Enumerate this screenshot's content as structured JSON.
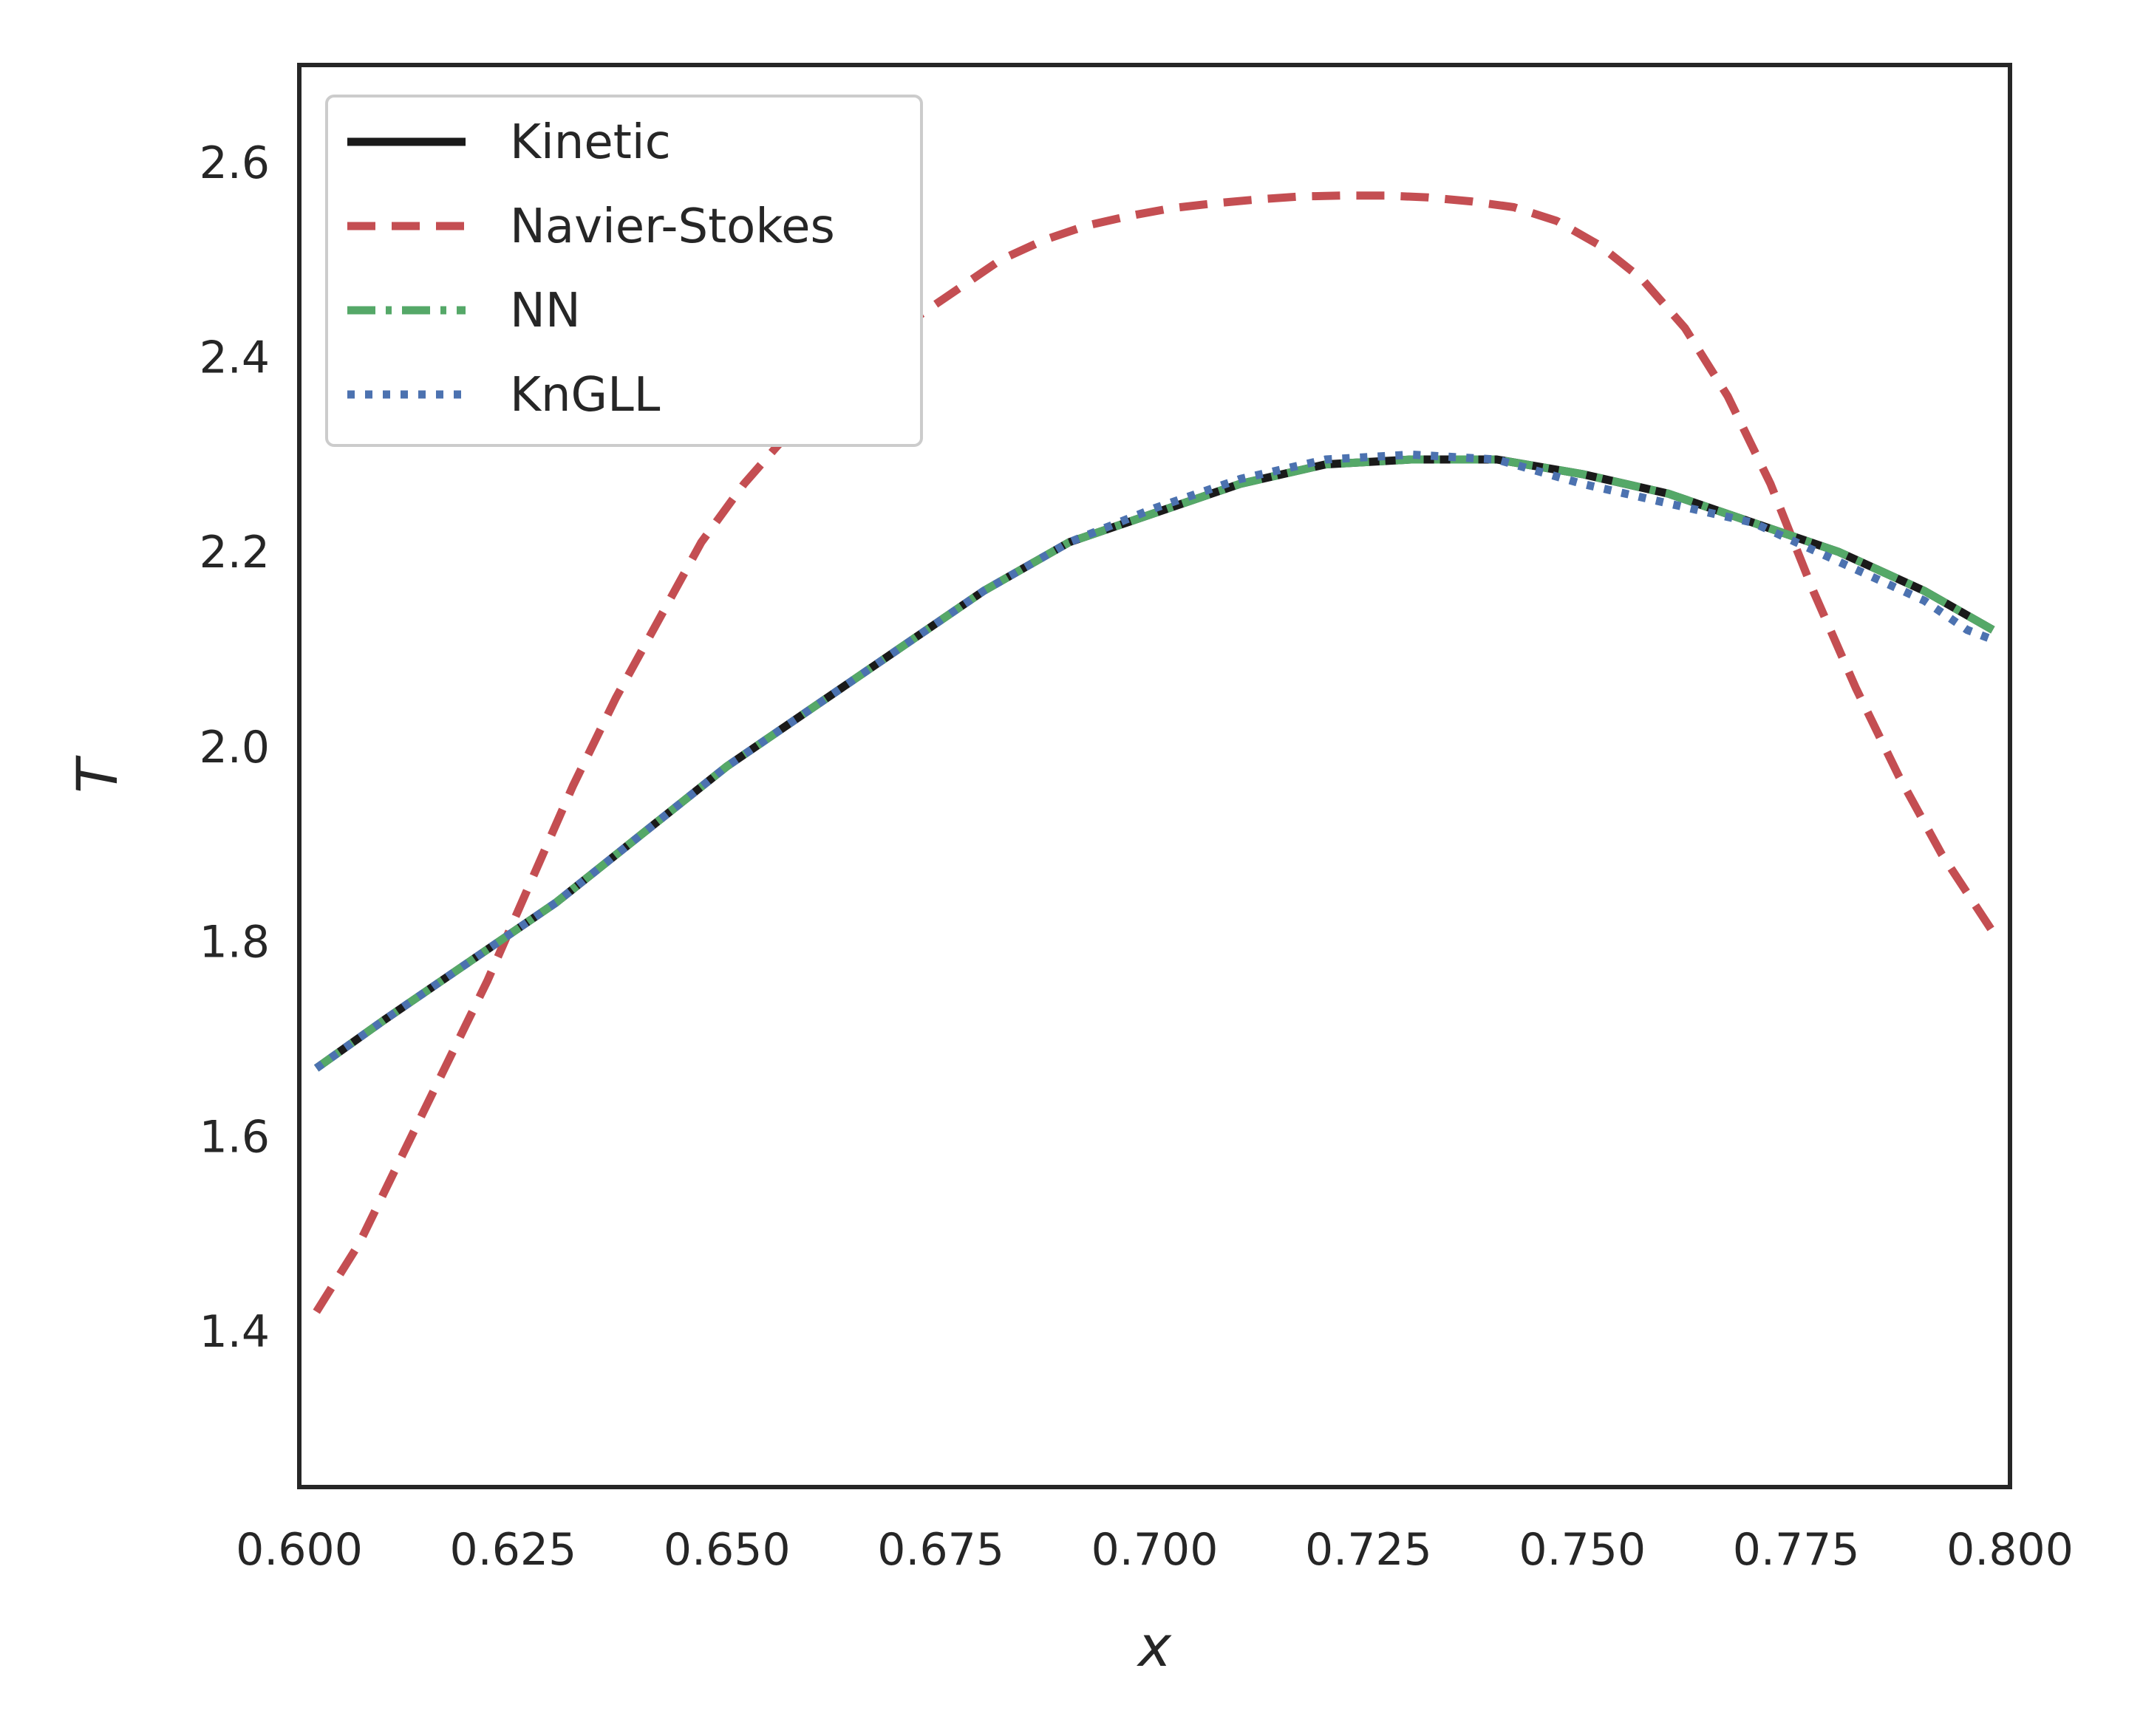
{
  "chart_data": {
    "type": "line",
    "xlabel": "x",
    "ylabel": "T",
    "xlim": [
      0.6,
      0.8
    ],
    "ylim": [
      1.24,
      2.7
    ],
    "xticks": [
      "0.600",
      "0.625",
      "0.650",
      "0.675",
      "0.700",
      "0.725",
      "0.750",
      "0.775",
      "0.800"
    ],
    "yticks": [
      "1.4",
      "1.6",
      "1.8",
      "2.0",
      "2.2",
      "2.4",
      "2.6"
    ],
    "grid": false,
    "legend_position": "top-left",
    "series": [
      {
        "name": "Kinetic",
        "color": "#1a1a1a",
        "style": "solid",
        "x": [
          0.602,
          0.61,
          0.62,
          0.63,
          0.64,
          0.65,
          0.66,
          0.67,
          0.68,
          0.69,
          0.7,
          0.71,
          0.72,
          0.73,
          0.74,
          0.75,
          0.76,
          0.77,
          0.78,
          0.79,
          0.798
        ],
        "y": [
          1.67,
          1.72,
          1.78,
          1.84,
          1.91,
          1.98,
          2.04,
          2.1,
          2.16,
          2.21,
          2.24,
          2.27,
          2.29,
          2.295,
          2.295,
          2.28,
          2.26,
          2.23,
          2.2,
          2.16,
          2.12
        ]
      },
      {
        "name": "Navier-Stokes",
        "color": "#c44e52",
        "style": "dashed",
        "x": [
          0.602,
          0.607,
          0.612,
          0.617,
          0.622,
          0.627,
          0.632,
          0.637,
          0.642,
          0.647,
          0.652,
          0.657,
          0.662,
          0.667,
          0.672,
          0.677,
          0.682,
          0.687,
          0.692,
          0.697,
          0.702,
          0.707,
          0.712,
          0.717,
          0.722,
          0.727,
          0.732,
          0.737,
          0.742,
          0.747,
          0.752,
          0.757,
          0.762,
          0.767,
          0.772,
          0.777,
          0.782,
          0.787,
          0.792,
          0.798
        ],
        "y": [
          1.42,
          1.49,
          1.58,
          1.67,
          1.76,
          1.86,
          1.96,
          2.05,
          2.13,
          2.21,
          2.27,
          2.32,
          2.36,
          2.4,
          2.44,
          2.47,
          2.5,
          2.52,
          2.535,
          2.545,
          2.553,
          2.558,
          2.562,
          2.565,
          2.566,
          2.566,
          2.564,
          2.56,
          2.554,
          2.54,
          2.515,
          2.48,
          2.43,
          2.36,
          2.27,
          2.16,
          2.06,
          1.97,
          1.89,
          1.81
        ]
      },
      {
        "name": "NN",
        "color": "#55a868",
        "style": "dashdot",
        "x": [
          0.602,
          0.61,
          0.62,
          0.63,
          0.64,
          0.65,
          0.66,
          0.67,
          0.68,
          0.69,
          0.7,
          0.71,
          0.72,
          0.73,
          0.74,
          0.75,
          0.76,
          0.77,
          0.78,
          0.79,
          0.798
        ],
        "y": [
          1.67,
          1.72,
          1.78,
          1.84,
          1.91,
          1.98,
          2.04,
          2.1,
          2.16,
          2.21,
          2.24,
          2.27,
          2.29,
          2.295,
          2.295,
          2.28,
          2.26,
          2.23,
          2.2,
          2.16,
          2.12
        ]
      },
      {
        "name": "KnGLL",
        "color": "#4c72b0",
        "style": "dotted",
        "x": [
          0.602,
          0.61,
          0.62,
          0.63,
          0.64,
          0.65,
          0.66,
          0.67,
          0.68,
          0.69,
          0.7,
          0.71,
          0.72,
          0.73,
          0.74,
          0.75,
          0.755,
          0.76,
          0.765,
          0.77,
          0.775,
          0.78,
          0.785,
          0.79,
          0.795,
          0.798
        ],
        "y": [
          1.67,
          1.72,
          1.78,
          1.84,
          1.91,
          1.98,
          2.04,
          2.1,
          2.16,
          2.21,
          2.245,
          2.275,
          2.295,
          2.3,
          2.295,
          2.27,
          2.26,
          2.25,
          2.24,
          2.23,
          2.21,
          2.19,
          2.17,
          2.15,
          2.12,
          2.11
        ]
      }
    ]
  }
}
